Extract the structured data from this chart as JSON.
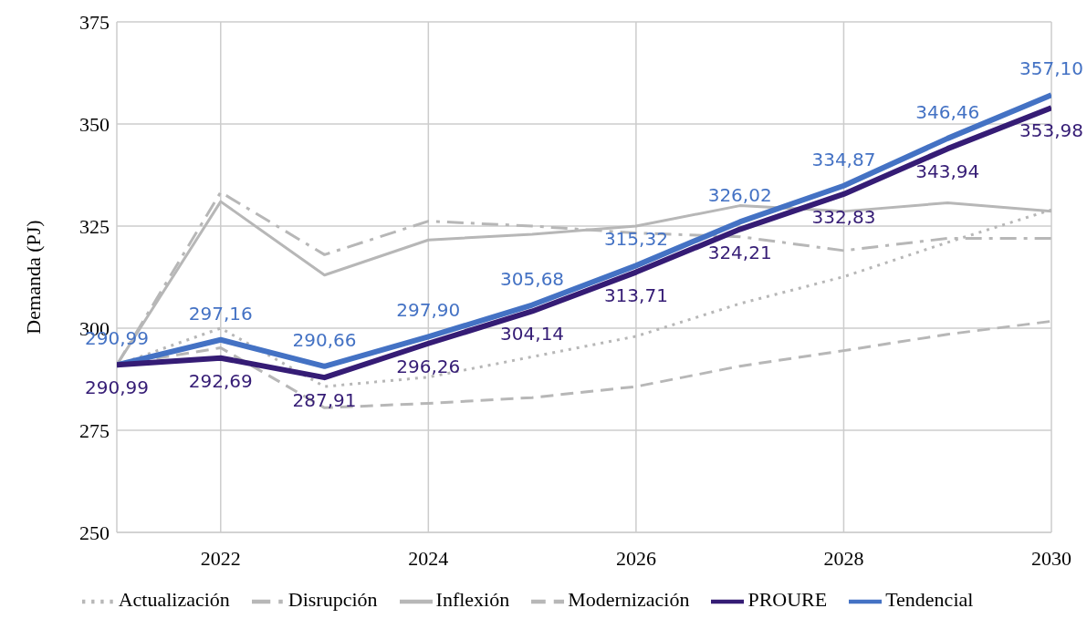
{
  "chart_data": {
    "type": "line",
    "ylabel": "Demanda (PJ)",
    "x": [
      2021,
      2022,
      2023,
      2024,
      2025,
      2026,
      2027,
      2028,
      2029,
      2030
    ],
    "xlim": [
      2021,
      2030
    ],
    "xticks": [
      2022,
      2024,
      2026,
      2028,
      2030
    ],
    "ylim": [
      250,
      375
    ],
    "yticks": [
      250,
      275,
      300,
      325,
      350,
      375
    ],
    "grid": true,
    "legend": "bottom",
    "marker": "none",
    "series": [
      {
        "name": "Tendencial",
        "color": "#4472c4",
        "line_style": "solid",
        "values": [
          290.99,
          297.16,
          290.66,
          297.9,
          305.68,
          315.32,
          326.02,
          334.87,
          346.46,
          357.1
        ],
        "value_labels": [
          "290,99",
          "297,16",
          "290,66",
          "297,90",
          "305,68",
          "315,32",
          "326,02",
          "334,87",
          "346,46",
          "357,10"
        ]
      },
      {
        "name": "PROURE",
        "color": "#351c75",
        "line_style": "solid",
        "values": [
          290.99,
          292.69,
          287.91,
          296.26,
          304.14,
          313.71,
          324.21,
          332.83,
          343.94,
          353.98
        ],
        "value_labels": [
          "290,99",
          "292,69",
          "287,91",
          "296,26",
          "304,14",
          "313,71",
          "324,21",
          "332,83",
          "343,94",
          "353,98"
        ]
      },
      {
        "name": "Actualización",
        "color": "#b7b7b7",
        "line_style": "dotted",
        "values": [
          291,
          300,
          285.7,
          288,
          293,
          298,
          306,
          312.6,
          321,
          329
        ]
      },
      {
        "name": "Modernización",
        "color": "#b7b7b7",
        "line_style": "dashed",
        "values": [
          291,
          295.2,
          280.5,
          281.6,
          283,
          285.7,
          290.7,
          294.5,
          298.5,
          301.7
        ]
      },
      {
        "name": "Inflexión",
        "color": "#b7b7b7",
        "line_style": "solid",
        "values": [
          291,
          331,
          313,
          321.6,
          323,
          325,
          330,
          328.6,
          330.7,
          328.6
        ]
      },
      {
        "name": "Disrupción",
        "color": "#b7b7b7",
        "line_style": "dashdot",
        "values": [
          291,
          333.3,
          318,
          326.2,
          325,
          323.3,
          322.4,
          319,
          322,
          322
        ]
      }
    ]
  }
}
